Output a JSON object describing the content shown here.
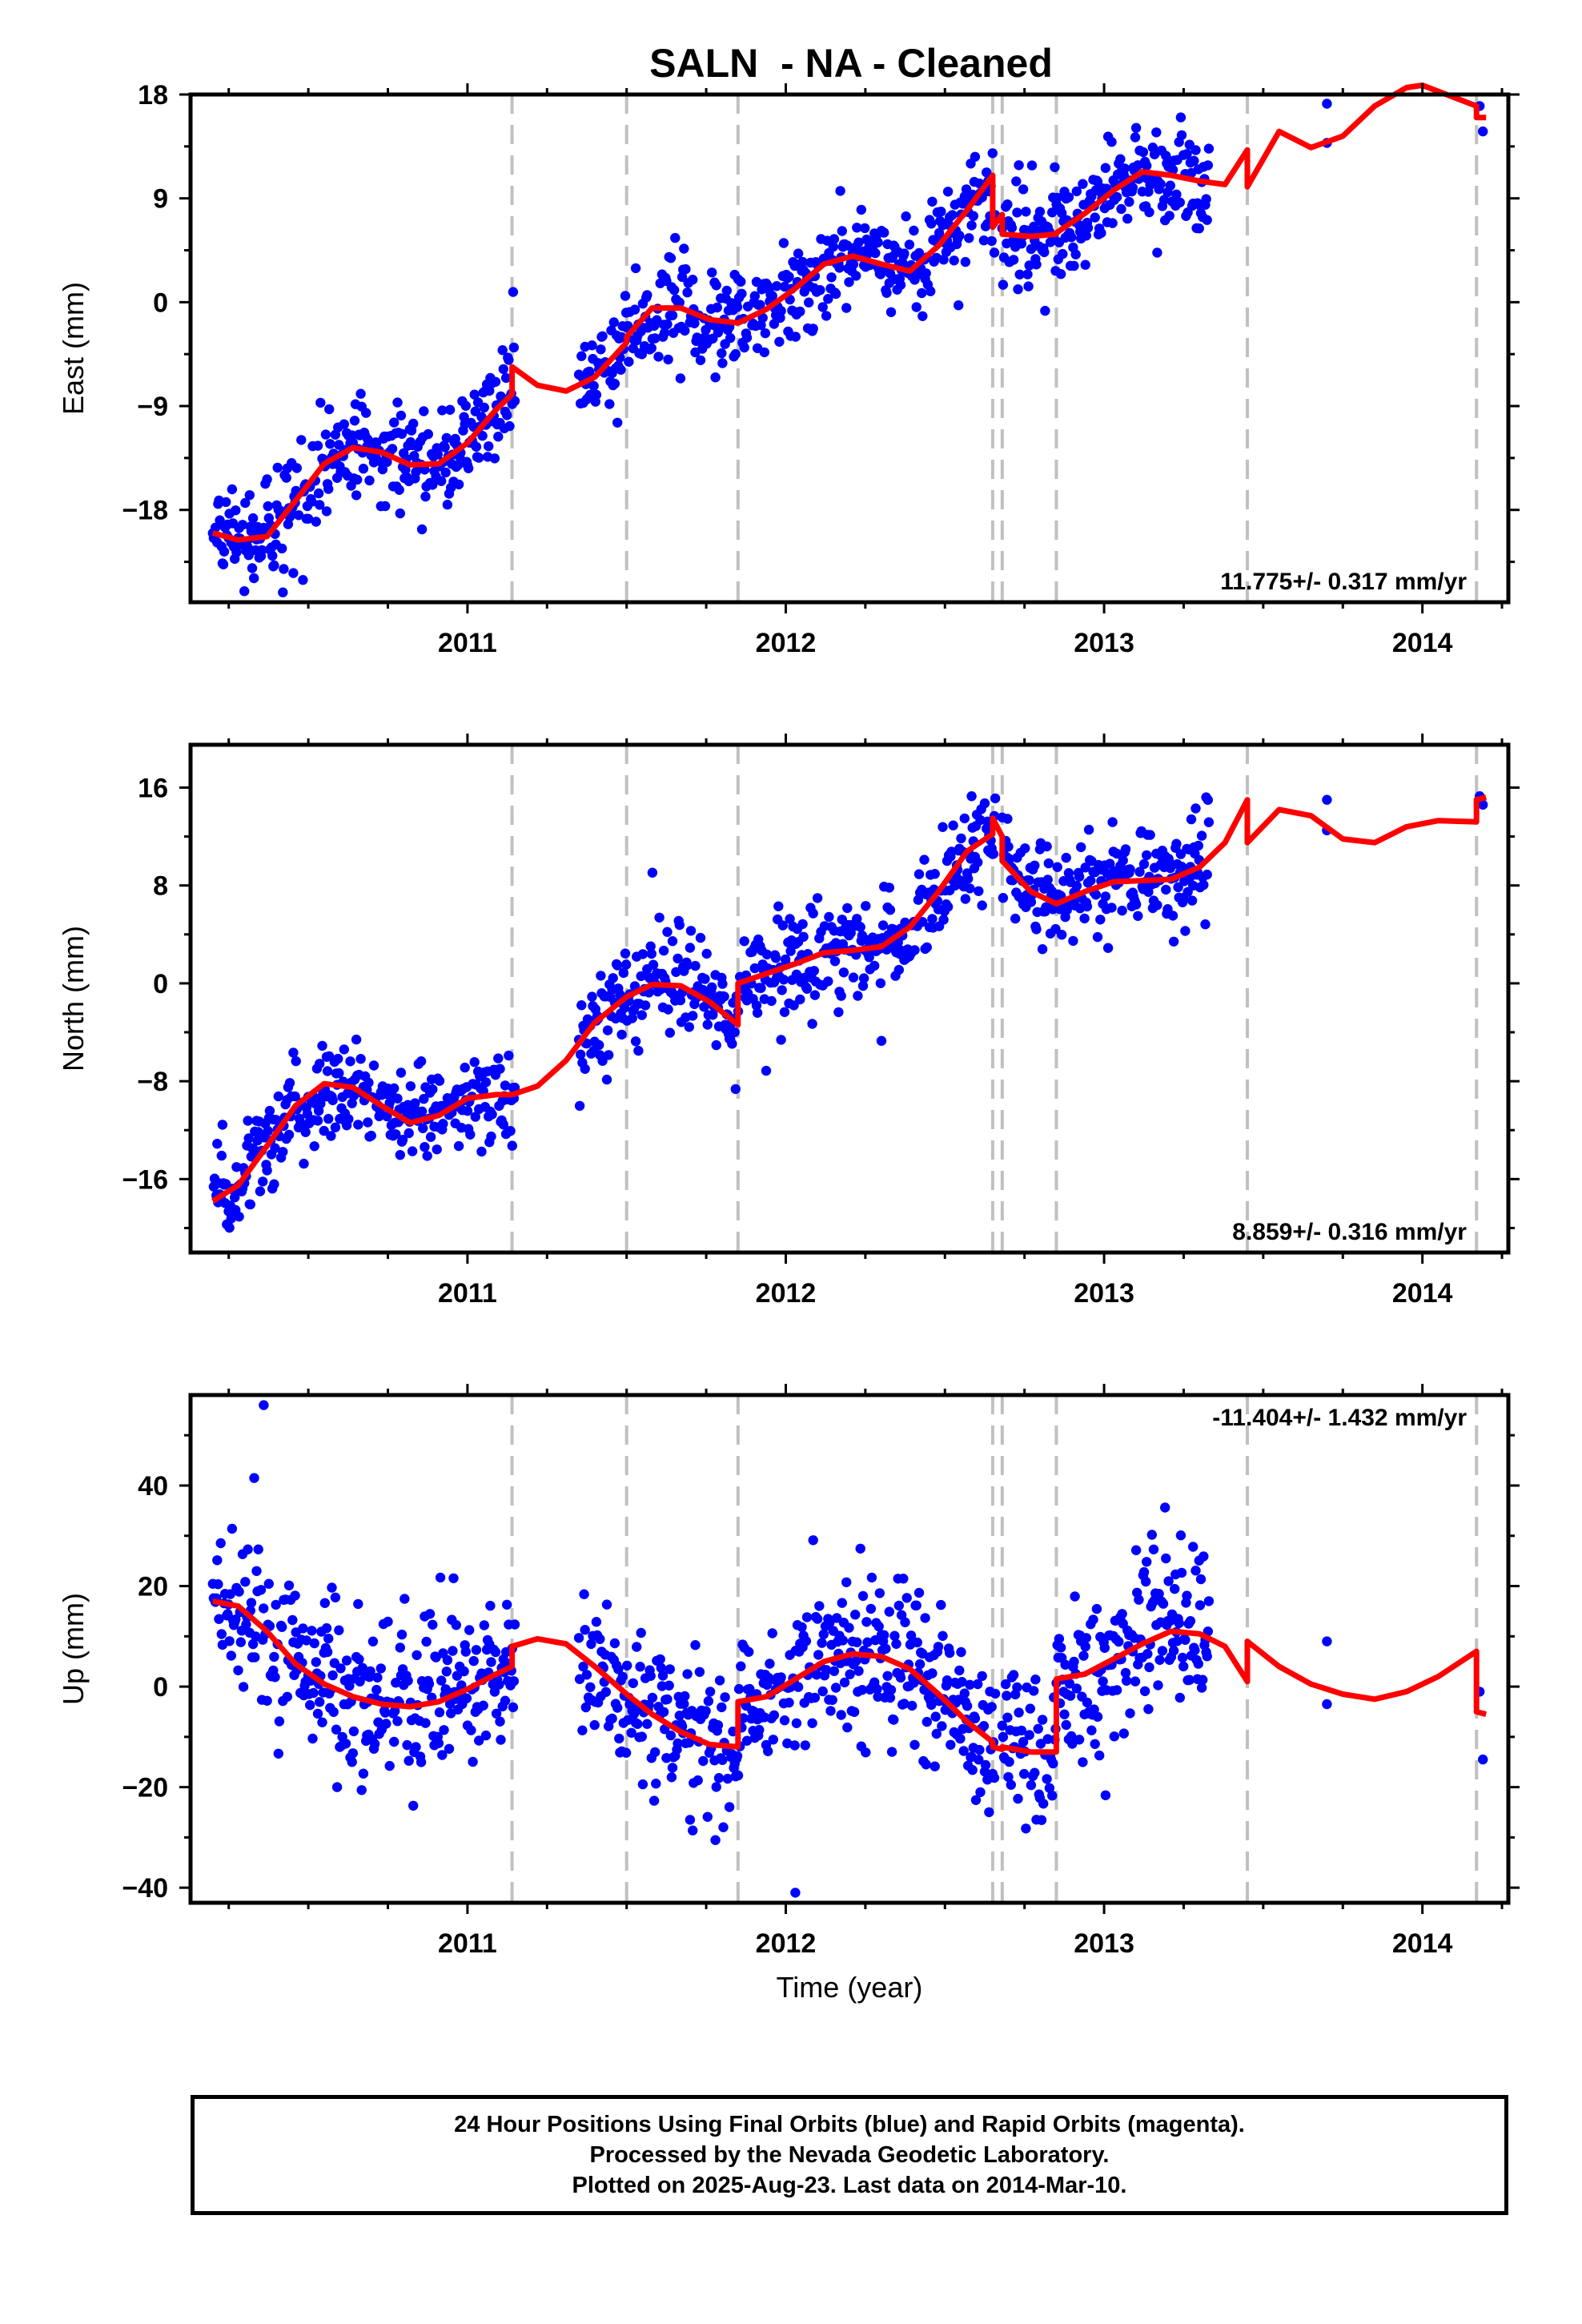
{
  "title": "SALN  - NA - Cleaned",
  "footer": {
    "line1": "24 Hour Positions Using Final Orbits (blue) and Rapid Orbits (magenta).",
    "line2": "Processed by the Nevada Geodetic Laboratory.",
    "line3": "Plotted on 2025-Aug-23. Last data on 2014-Mar-10."
  },
  "colors": {
    "final_points": "#0000ff",
    "rapid_points": "#ff00ff",
    "model_line": "#ff0000",
    "step_lines": "#c0c0c0",
    "frame": "#000000"
  },
  "chart_data": [
    {
      "type": "scatter",
      "component": "east",
      "ylabel": "East (mm)",
      "xlim": [
        2010.13,
        2014.27
      ],
      "ylim": [
        -26,
        18
      ],
      "yticks": [
        -18,
        -9,
        0,
        9,
        18
      ],
      "ytick_labels": [
        "-18",
        "-9",
        "0",
        "9",
        "18"
      ],
      "xticks": [
        2011,
        2012,
        2013,
        2014
      ],
      "xtick_labels": [
        "2011",
        "2012",
        "2013",
        "2014"
      ],
      "rate_text": "11.775+/- 0.317 mm/yr",
      "rate_position": "bottom-right",
      "grid": false,
      "step_epochs": [
        2011.14,
        2011.5,
        2011.85,
        2012.65,
        2012.68,
        2012.85,
        2013.45,
        2014.17
      ],
      "data_segments": [
        [
          2010.2,
          2011.15
        ],
        [
          2011.35,
          2012.02
        ],
        [
          2012.02,
          2012.66
        ],
        [
          2012.68,
          2013.33
        ]
      ],
      "sparse_points": [
        [
          2013.7,
          17.2
        ],
        [
          2013.7,
          13.8
        ],
        [
          2014.18,
          17.0
        ],
        [
          2014.19,
          14.8
        ]
      ],
      "model_line": {
        "x": [
          2010.2,
          2010.28,
          2010.37,
          2010.46,
          2010.55,
          2010.64,
          2010.73,
          2010.82,
          2010.91,
          2011.0,
          2011.09,
          2011.14,
          2011.14,
          2011.22,
          2011.31,
          2011.4,
          2011.5,
          2011.5,
          2011.58,
          2011.67,
          2011.76,
          2011.85,
          2011.85,
          2011.94,
          2012.03,
          2012.12,
          2012.21,
          2012.3,
          2012.39,
          2012.48,
          2012.57,
          2012.65,
          2012.65,
          2012.68,
          2012.68,
          2012.77,
          2012.85,
          2012.85,
          2012.94,
          2013.03,
          2013.12,
          2013.21,
          2013.3,
          2013.38,
          2013.45,
          2013.45,
          2013.55,
          2013.65,
          2013.75,
          2013.85,
          2013.95,
          2014.0,
          2014.17,
          2014.17,
          2014.2
        ],
        "y": [
          -20.0,
          -20.6,
          -20.3,
          -17.2,
          -14.0,
          -12.6,
          -13.0,
          -14.1,
          -14.0,
          -12.2,
          -9.3,
          -8.0,
          -5.6,
          -7.2,
          -7.7,
          -6.5,
          -3.5,
          -3.0,
          -0.5,
          -0.5,
          -1.5,
          -1.8,
          -1.8,
          -0.6,
          1.2,
          3.3,
          4.0,
          3.3,
          2.7,
          4.9,
          8.0,
          11.0,
          6.5,
          7.6,
          5.9,
          5.7,
          5.9,
          6.0,
          7.7,
          9.7,
          11.3,
          11.0,
          10.5,
          10.2,
          13.2,
          10.0,
          14.8,
          13.4,
          14.4,
          17.0,
          18.6,
          18.8,
          17.0,
          16.0,
          16.0
        ]
      }
    },
    {
      "type": "scatter",
      "component": "north",
      "ylabel": "North (mm)",
      "xlim": [
        2010.13,
        2014.27
      ],
      "ylim": [
        -22,
        19.5
      ],
      "yticks": [
        -16,
        -8,
        0,
        8,
        16
      ],
      "ytick_labels": [
        "-16",
        "-8",
        "0",
        "8",
        "16"
      ],
      "xticks": [
        2011,
        2012,
        2013,
        2014
      ],
      "xtick_labels": [
        "2011",
        "2012",
        "2013",
        "2014"
      ],
      "rate_text": "8.859+/- 0.316 mm/yr",
      "rate_position": "bottom-right",
      "grid": false,
      "step_epochs": [
        2011.14,
        2011.5,
        2011.85,
        2012.65,
        2012.68,
        2012.85,
        2013.45,
        2014.17
      ],
      "data_segments": [
        [
          2010.2,
          2011.15
        ],
        [
          2011.35,
          2012.02
        ],
        [
          2012.02,
          2012.66
        ],
        [
          2012.68,
          2013.33
        ]
      ],
      "sparse_points": [
        [
          2013.7,
          15.0
        ],
        [
          2013.7,
          12.5
        ],
        [
          2014.18,
          15.3
        ],
        [
          2014.19,
          14.6
        ]
      ],
      "model_line": {
        "x": [
          2010.2,
          2010.28,
          2010.37,
          2010.46,
          2010.55,
          2010.64,
          2010.73,
          2010.82,
          2010.91,
          2011.0,
          2011.09,
          2011.14,
          2011.22,
          2011.31,
          2011.4,
          2011.5,
          2011.58,
          2011.67,
          2011.76,
          2011.85,
          2011.85,
          2011.94,
          2012.03,
          2012.12,
          2012.21,
          2012.3,
          2012.39,
          2012.48,
          2012.57,
          2012.65,
          2012.65,
          2012.68,
          2012.68,
          2012.77,
          2012.85,
          2012.85,
          2012.94,
          2013.03,
          2013.12,
          2013.21,
          2013.3,
          2013.38,
          2013.45,
          2013.45,
          2013.55,
          2013.65,
          2013.75,
          2013.85,
          2013.95,
          2014.05,
          2014.17,
          2014.17,
          2014.2
        ],
        "y": [
          -17.8,
          -16.5,
          -13.3,
          -10.0,
          -8.2,
          -8.5,
          -10.0,
          -11.4,
          -10.8,
          -9.4,
          -9.1,
          -9.1,
          -8.4,
          -6.3,
          -3.2,
          -1.1,
          -0.1,
          -0.2,
          -1.5,
          -3.4,
          0.0,
          0.8,
          1.6,
          2.5,
          2.7,
          3.0,
          4.6,
          7.5,
          10.8,
          12.2,
          13.5,
          12.0,
          10.0,
          7.5,
          6.5,
          6.5,
          7.5,
          8.3,
          8.4,
          8.5,
          9.5,
          11.5,
          15.0,
          11.5,
          14.2,
          13.7,
          11.8,
          11.5,
          12.8,
          13.3,
          13.2,
          15.0,
          15.2
        ]
      }
    },
    {
      "type": "scatter",
      "component": "up",
      "ylabel": "Up (mm)",
      "xlim": [
        2010.13,
        2014.27
      ],
      "ylim": [
        -43,
        58
      ],
      "yticks": [
        -40,
        -20,
        0,
        20,
        40
      ],
      "ytick_labels": [
        "-40",
        "-20",
        "0",
        "20",
        "40"
      ],
      "xticks": [
        2011,
        2012,
        2013,
        2014
      ],
      "xtick_labels": [
        "2011",
        "2012",
        "2013",
        "2014"
      ],
      "xlabel": "Time (year)",
      "rate_text": "-11.404+/- 1.432 mm/yr",
      "rate_position": "top-right",
      "grid": false,
      "step_epochs": [
        2011.14,
        2011.5,
        2011.85,
        2012.65,
        2012.68,
        2012.85,
        2013.45,
        2014.17
      ],
      "data_segments": [
        [
          2010.2,
          2011.15
        ],
        [
          2011.35,
          2012.02
        ],
        [
          2012.02,
          2012.66
        ],
        [
          2012.68,
          2013.33
        ]
      ],
      "sparse_points": [
        [
          2013.7,
          9.0
        ],
        [
          2013.7,
          -3.5
        ],
        [
          2014.18,
          -1.0
        ],
        [
          2014.19,
          -14.5
        ],
        [
          2010.36,
          56.0
        ],
        [
          2010.33,
          41.5
        ],
        [
          2012.03,
          -41.0
        ]
      ],
      "model_line": {
        "x": [
          2010.2,
          2010.28,
          2010.37,
          2010.46,
          2010.55,
          2010.64,
          2010.73,
          2010.82,
          2010.91,
          2011.0,
          2011.09,
          2011.14,
          2011.14,
          2011.22,
          2011.31,
          2011.4,
          2011.5,
          2011.58,
          2011.67,
          2011.76,
          2011.85,
          2011.85,
          2011.94,
          2012.03,
          2012.12,
          2012.21,
          2012.3,
          2012.39,
          2012.48,
          2012.57,
          2012.65,
          2012.65,
          2012.68,
          2012.68,
          2012.77,
          2012.85,
          2012.85,
          2012.94,
          2013.03,
          2013.12,
          2013.21,
          2013.3,
          2013.38,
          2013.45,
          2013.45,
          2013.55,
          2013.65,
          2013.75,
          2013.85,
          2013.95,
          2014.05,
          2014.17,
          2014.17,
          2014.2
        ],
        "y": [
          17.0,
          16.0,
          11.0,
          4.5,
          0.5,
          -2.0,
          -3.5,
          -4.0,
          -3.0,
          -0.5,
          2.5,
          4.0,
          8.0,
          9.5,
          8.5,
          4.0,
          -1.5,
          -5.5,
          -9.0,
          -11.5,
          -12.0,
          -3.0,
          -2.0,
          1.5,
          5.0,
          6.5,
          6.0,
          3.5,
          -1.5,
          -7.0,
          -11.0,
          -12.0,
          -12.5,
          -12.0,
          -13.0,
          -13.0,
          1.5,
          2.5,
          5.5,
          8.5,
          11.0,
          10.5,
          8.0,
          1.0,
          9.0,
          4.0,
          0.5,
          -1.5,
          -2.5,
          -1.0,
          2.0,
          7.0,
          -5.0,
          -5.5
        ]
      }
    }
  ]
}
